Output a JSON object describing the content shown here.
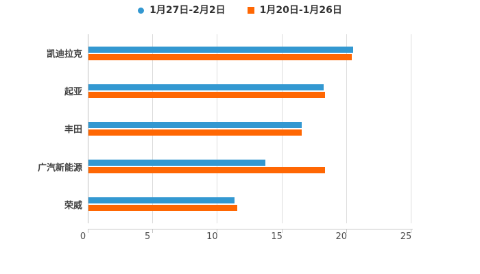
{
  "page": {
    "background": "#FFFFFF"
  },
  "legend": {
    "items": [
      {
        "label": "1月27日-2月2日",
        "marker": "circle-icon",
        "color": "#3398D1"
      },
      {
        "label": "1月20日-1月26日",
        "marker": "square-icon",
        "color": "#FF6703"
      }
    ]
  },
  "chart_data": {
    "type": "bar",
    "orientation": "horizontal",
    "title": "",
    "categories": [
      "凯迪拉克",
      "起亚",
      "丰田",
      "广汽新能源",
      "荣威"
    ],
    "series": [
      {
        "name": "1月27日-2月2日",
        "color": "#3398D1",
        "marker": "circle",
        "values": [
          20.5,
          18.2,
          16.5,
          13.7,
          11.3
        ]
      },
      {
        "name": "1月20日-1月26日",
        "color": "#FF6703",
        "marker": "square",
        "values": [
          20.4,
          18.3,
          16.5,
          18.3,
          11.5
        ]
      }
    ],
    "xlabel": "",
    "ylabel": "",
    "xlim": [
      0,
      25
    ],
    "xticks": [
      0,
      5,
      10,
      15,
      20,
      25
    ],
    "grid": true,
    "legend_position": "top",
    "styles": {
      "grid_color": "#DCDCDC",
      "axis_color": "#C6C6C6",
      "tick_text_color": "#4D4D4D",
      "category_text_color": "#404040"
    }
  }
}
